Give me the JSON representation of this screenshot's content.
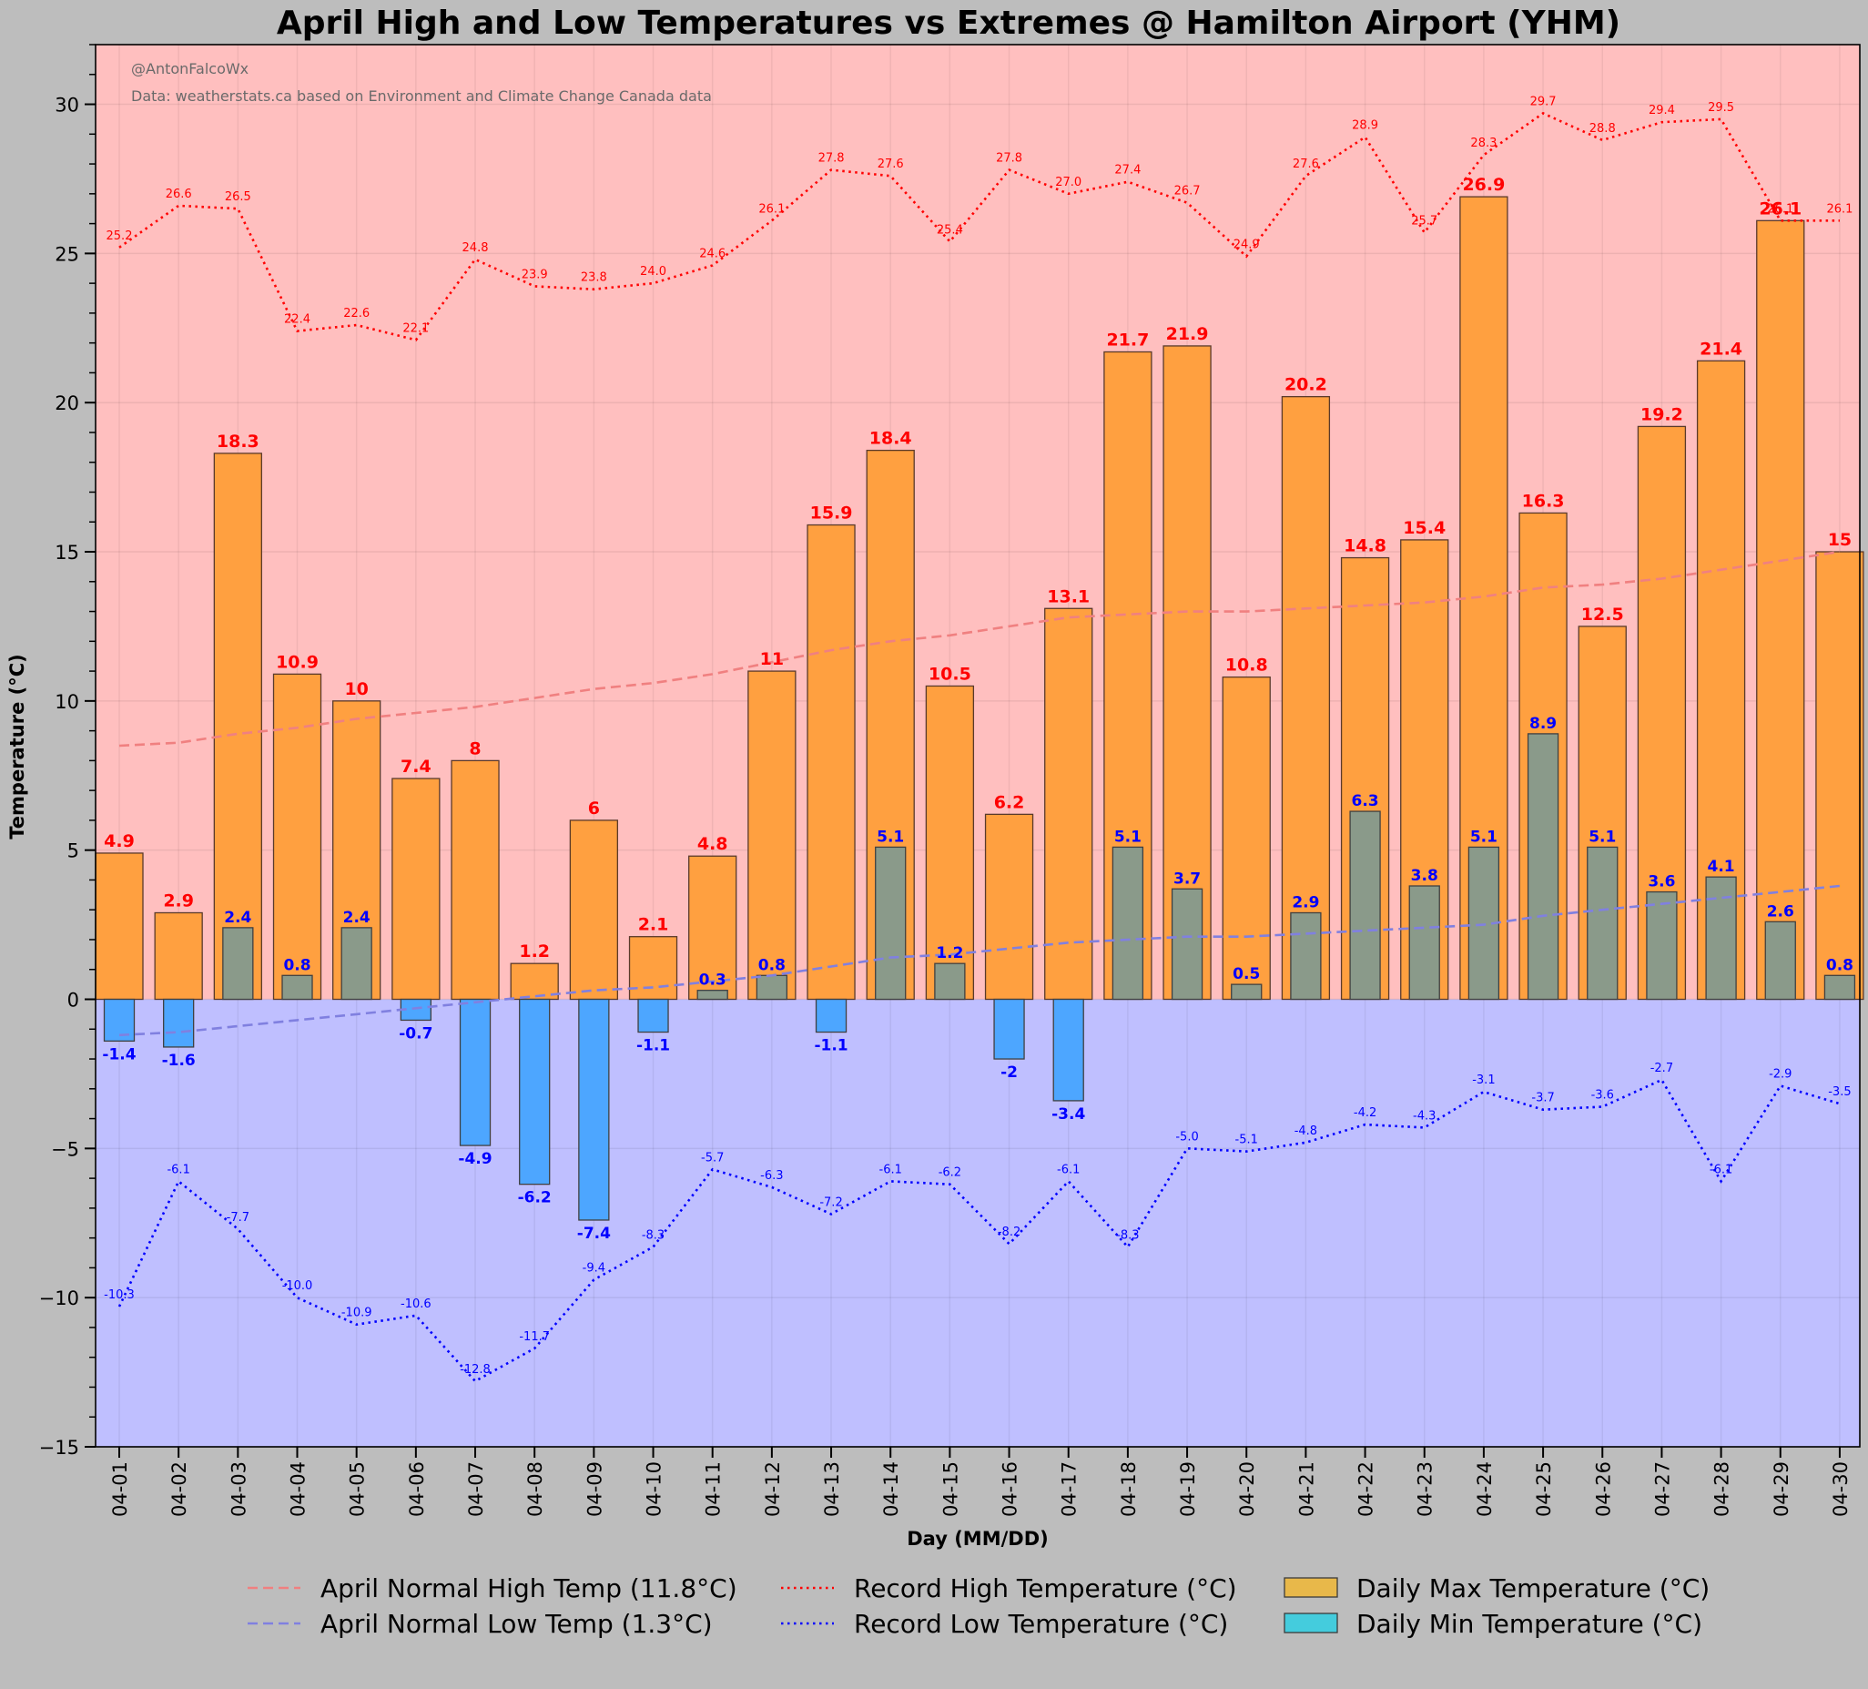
{
  "chart_data": {
    "type": "bar",
    "title": "April High and Low Temperatures vs Extremes @ Hamilton Airport (YHM)",
    "xlabel": "Day (MM/DD)",
    "ylabel": "Temperature (°C)",
    "ylim": [
      -15,
      32
    ],
    "yticks": [
      -15,
      -10,
      -5,
      0,
      5,
      10,
      15,
      20,
      25,
      30
    ],
    "ytick_labels": [
      "−15",
      "−10",
      "−5",
      "0",
      "5",
      "10",
      "15",
      "20",
      "25",
      "30"
    ],
    "credit": "@AntonFalcoWx",
    "source": "Data: weatherstats.ca based on Environment and Climate Change Canada data",
    "categories": [
      "04-01",
      "04-02",
      "04-03",
      "04-04",
      "04-05",
      "04-06",
      "04-07",
      "04-08",
      "04-09",
      "04-10",
      "04-11",
      "04-12",
      "04-13",
      "04-14",
      "04-15",
      "04-16",
      "04-17",
      "04-18",
      "04-19",
      "04-20",
      "04-21",
      "04-22",
      "04-23",
      "04-24",
      "04-25",
      "04-26",
      "04-27",
      "04-28",
      "04-29",
      "04-30"
    ],
    "daily_max": [
      4.9,
      2.9,
      18.3,
      10.9,
      10,
      7.4,
      8,
      1.2,
      6,
      2.1,
      4.8,
      11,
      15.9,
      18.4,
      10.5,
      6.2,
      13.1,
      21.7,
      21.9,
      10.8,
      20.2,
      14.8,
      15.4,
      26.9,
      16.3,
      12.5,
      19.2,
      21.4,
      26.1,
      15
    ],
    "daily_min": [
      -1.4,
      -1.6,
      2.4,
      0.8,
      2.4,
      -0.7,
      -4.9,
      -6.2,
      -7.4,
      -1.1,
      0.3,
      0.8,
      -1.1,
      5.1,
      1.2,
      -2,
      -3.4,
      5.1,
      3.7,
      0.5,
      2.9,
      6.3,
      3.8,
      5.1,
      8.9,
      5.1,
      3.6,
      4.1,
      2.6,
      0.8
    ],
    "record_high": [
      25.2,
      26.6,
      26.5,
      22.4,
      22.6,
      22.1,
      24.8,
      23.9,
      23.8,
      24.0,
      24.6,
      26.1,
      27.8,
      27.6,
      25.4,
      27.8,
      27.0,
      27.4,
      26.7,
      24.9,
      27.6,
      28.9,
      25.7,
      28.3,
      29.7,
      28.8,
      29.4,
      29.5,
      26.1,
      26.1
    ],
    "record_low": [
      -10.3,
      -6.1,
      -7.7,
      -10.0,
      -10.9,
      -10.6,
      -12.8,
      -11.7,
      -9.4,
      -8.3,
      -5.7,
      -6.3,
      -7.2,
      -6.1,
      -6.2,
      -8.2,
      -6.1,
      -8.3,
      -5.0,
      -5.1,
      -4.8,
      -4.2,
      -4.3,
      -3.1,
      -3.7,
      -3.6,
      -2.7,
      -6.1,
      -2.9,
      -3.5
    ],
    "normal_high": [
      8.5,
      8.6,
      8.9,
      9.1,
      9.4,
      9.6,
      9.8,
      10.1,
      10.4,
      10.6,
      10.9,
      11.3,
      11.7,
      12.0,
      12.2,
      12.5,
      12.8,
      12.9,
      13.0,
      13.0,
      13.1,
      13.2,
      13.3,
      13.5,
      13.8,
      13.9,
      14.1,
      14.4,
      14.7,
      15.0
    ],
    "normal_low": [
      -1.2,
      -1.1,
      -0.9,
      -0.7,
      -0.5,
      -0.3,
      -0.1,
      0.1,
      0.3,
      0.4,
      0.6,
      0.8,
      1.1,
      1.4,
      1.5,
      1.7,
      1.9,
      2.0,
      2.1,
      2.1,
      2.2,
      2.3,
      2.4,
      2.5,
      2.8,
      3.0,
      3.2,
      3.4,
      3.6,
      3.8
    ],
    "high_labels": [
      "4.9",
      "2.9",
      "18.3",
      "10.9",
      "10",
      "7.4",
      "8",
      "1.2",
      "6",
      "2.1",
      "4.8",
      "11",
      "15.9",
      "18.4",
      "10.5",
      "6.2",
      "13.1",
      "21.7",
      "21.9",
      "10.8",
      "20.2",
      "14.8",
      "15.4",
      "26.9",
      "16.3",
      "12.5",
      "19.2",
      "21.4",
      "26.1",
      "15"
    ],
    "low_labels": [
      "-1.4",
      "-1.6",
      "2.4",
      "0.8",
      "2.4",
      "-0.7",
      "-4.9",
      "-6.2",
      "-7.4",
      "-1.1",
      "0.3",
      "0.8",
      "-1.1",
      "5.1",
      "1.2",
      "-2",
      "-3.4",
      "5.1",
      "3.7",
      "0.5",
      "2.9",
      "6.3",
      "3.8",
      "5.1",
      "8.9",
      "5.1",
      "3.6",
      "4.1",
      "2.6",
      "0.8"
    ],
    "record_high_labels": [
      "25.2",
      "26.6",
      "26.5",
      "22.4",
      "22.6",
      "22.1",
      "24.8",
      "23.9",
      "23.8",
      "24.0",
      "24.6",
      "26.1",
      "27.8",
      "27.6",
      "25.4",
      "27.8",
      "27.0",
      "27.4",
      "26.7",
      "24.9",
      "27.6",
      "28.9",
      "25.7",
      "28.3",
      "29.7",
      "28.8",
      "29.4",
      "29.5",
      "26.1",
      "26.1"
    ],
    "record_low_labels": [
      "-10.3",
      "-6.1",
      "-7.7",
      "-10.0",
      "-10.9",
      "-10.6",
      "-12.8",
      "-11.7",
      "-9.4",
      "-8.3",
      "-5.7",
      "-6.3",
      "-7.2",
      "-6.1",
      "-6.2",
      "-8.2",
      "-6.1",
      "-8.3",
      "-5.0",
      "-5.1",
      "-4.8",
      "-4.2",
      "-4.3",
      "-3.1",
      "-3.7",
      "-3.6",
      "-2.7",
      "-6.1",
      "-2.9",
      "-3.5"
    ],
    "legend": [
      {
        "label": "April Normal High Temp (11.8°C)",
        "kind": "dashed",
        "color": "#f08080"
      },
      {
        "label": "April Normal Low Temp (1.3°C)",
        "kind": "dashed",
        "color": "#8080e0"
      },
      {
        "label": "Record High Temperature (°C)",
        "kind": "dotted",
        "color": "#ff0000"
      },
      {
        "label": "Record Low Temperature (°C)",
        "kind": "dotted",
        "color": "#0000ff"
      },
      {
        "label": "Daily Max Temperature (°C)",
        "kind": "patch",
        "color": "#e8b84a"
      },
      {
        "label": "Daily Min Temperature (°C)",
        "kind": "patch",
        "color": "#44ccdd"
      }
    ],
    "legend_position": "bottom-center",
    "colors": {
      "warm_bg": "#ffbfbf",
      "cold_bg": "#bfbfff",
      "max_bar": "#ffa040",
      "min_bar_neg": "#4da6ff",
      "min_bar_pos": "#8a9a8a",
      "record_high": "#ff0000",
      "record_low": "#0000ff",
      "normal_high": "#f08080",
      "normal_low": "#8080e0"
    }
  }
}
